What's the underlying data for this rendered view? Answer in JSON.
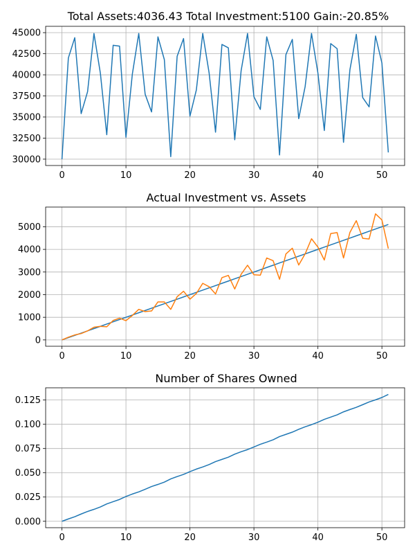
{
  "chart_data": [
    {
      "type": "line",
      "title": "Total Assets:4036.43  Total Investment:5100  Gain:-20.85%",
      "xlim": [
        -2.55,
        53.55
      ],
      "ylim": [
        29250,
        45750
      ],
      "xticks": [
        0,
        10,
        20,
        30,
        40,
        50
      ],
      "yticks": [
        30000,
        32500,
        35000,
        37500,
        40000,
        42500,
        45000
      ],
      "xtick_labels": [
        "0",
        "10",
        "20",
        "30",
        "40",
        "50"
      ],
      "ytick_labels": [
        "30000",
        "32500",
        "35000",
        "37500",
        "40000",
        "42500",
        "45000"
      ],
      "grid": true,
      "series": [
        {
          "color": "#1f77b4",
          "x": [
            0,
            1,
            2,
            3,
            4,
            5,
            6,
            7,
            8,
            9,
            10,
            11,
            12,
            13,
            14,
            15,
            16,
            17,
            18,
            19,
            20,
            21,
            22,
            23,
            24,
            25,
            26,
            27,
            28,
            29,
            30,
            31,
            32,
            33,
            34,
            35,
            36,
            37,
            38,
            39,
            40,
            41,
            42,
            43,
            44,
            45,
            46,
            47,
            48,
            49,
            50,
            51
          ],
          "values": [
            30000,
            42000,
            44400,
            35400,
            38000,
            44900,
            40200,
            32900,
            43500,
            43400,
            32600,
            40100,
            44900,
            37700,
            35600,
            44500,
            41800,
            30300,
            42200,
            44300,
            35100,
            38200,
            44900,
            40200,
            33200,
            43600,
            43200,
            32300,
            40500,
            44900,
            37400,
            35900,
            44500,
            41700,
            30500,
            42400,
            44200,
            34800,
            38600,
            44900,
            40200,
            33400,
            43700,
            43100,
            32000,
            40600,
            44800,
            37300,
            36200,
            44600,
            41400,
            30800
          ]
        }
      ]
    },
    {
      "type": "line",
      "title": "Actual Investment vs. Assets",
      "xlim": [
        -2.55,
        53.55
      ],
      "ylim": [
        -280,
        5870
      ],
      "xticks": [
        0,
        10,
        20,
        30,
        40,
        50
      ],
      "yticks": [
        0,
        1000,
        2000,
        3000,
        4000,
        5000
      ],
      "xtick_labels": [
        "0",
        "10",
        "20",
        "30",
        "40",
        "50"
      ],
      "ytick_labels": [
        "0",
        "1000",
        "2000",
        "3000",
        "4000",
        "5000"
      ],
      "grid": true,
      "series": [
        {
          "color": "#1f77b4",
          "x": [
            0,
            1,
            2,
            3,
            4,
            5,
            6,
            7,
            8,
            9,
            10,
            11,
            12,
            13,
            14,
            15,
            16,
            17,
            18,
            19,
            20,
            21,
            22,
            23,
            24,
            25,
            26,
            27,
            28,
            29,
            30,
            31,
            32,
            33,
            34,
            35,
            36,
            37,
            38,
            39,
            40,
            41,
            42,
            43,
            44,
            45,
            46,
            47,
            48,
            49,
            50,
            51
          ],
          "values": [
            0,
            100,
            200,
            300,
            400,
            500,
            600,
            700,
            800,
            900,
            1000,
            1100,
            1200,
            1300,
            1400,
            1500,
            1600,
            1700,
            1800,
            1900,
            2000,
            2100,
            2200,
            2300,
            2400,
            2500,
            2600,
            2700,
            2800,
            2900,
            3000,
            3100,
            3200,
            3300,
            3400,
            3500,
            3600,
            3700,
            3800,
            3900,
            4000,
            4100,
            4200,
            4300,
            4400,
            4500,
            4600,
            4700,
            4800,
            4900,
            5000,
            5100
          ]
        },
        {
          "color": "#ff7f0e",
          "x": [
            0,
            1,
            2,
            3,
            4,
            5,
            6,
            7,
            8,
            9,
            10,
            11,
            12,
            13,
            14,
            15,
            16,
            17,
            18,
            19,
            20,
            21,
            22,
            23,
            24,
            25,
            26,
            27,
            28,
            29,
            30,
            31,
            32,
            33,
            34,
            35,
            36,
            37,
            38,
            39,
            40,
            41,
            42,
            43,
            44,
            45,
            46,
            47,
            48,
            49,
            50,
            51
          ],
          "values": [
            0,
            120,
            220,
            280,
            400,
            560,
            600,
            580,
            860,
            960,
            850,
            1080,
            1350,
            1250,
            1280,
            1680,
            1680,
            1350,
            1910,
            2150,
            1800,
            2050,
            2500,
            2350,
            2030,
            2750,
            2850,
            2250,
            2900,
            3300,
            2880,
            2860,
            3620,
            3500,
            2680,
            3800,
            4050,
            3310,
            3800,
            4470,
            4100,
            3530,
            4700,
            4740,
            3620,
            4750,
            5270,
            4490,
            4460,
            5570,
            5300,
            4036
          ]
        }
      ]
    },
    {
      "type": "line",
      "title": "Number of Shares Owned",
      "xlim": [
        -2.55,
        53.55
      ],
      "ylim": [
        -0.0066,
        0.1376
      ],
      "xticks": [
        0,
        10,
        20,
        30,
        40,
        50
      ],
      "yticks": [
        0.0,
        0.025,
        0.05,
        0.075,
        0.1,
        0.125
      ],
      "xtick_labels": [
        "0",
        "10",
        "20",
        "30",
        "40",
        "50"
      ],
      "ytick_labels": [
        "0.000",
        "0.025",
        "0.050",
        "0.075",
        "0.100",
        "0.125"
      ],
      "grid": true,
      "series": [
        {
          "color": "#1f77b4",
          "x": [
            0,
            1,
            2,
            3,
            4,
            5,
            6,
            7,
            8,
            9,
            10,
            11,
            12,
            13,
            14,
            15,
            16,
            17,
            18,
            19,
            20,
            21,
            22,
            23,
            24,
            25,
            26,
            27,
            28,
            29,
            30,
            31,
            32,
            33,
            34,
            35,
            36,
            37,
            38,
            39,
            40,
            41,
            42,
            43,
            44,
            45,
            46,
            47,
            48,
            49,
            50,
            51
          ],
          "values": [
            0.0,
            0.0024,
            0.0047,
            0.0075,
            0.0101,
            0.0123,
            0.0148,
            0.0179,
            0.0202,
            0.0225,
            0.0256,
            0.0281,
            0.0303,
            0.033,
            0.0358,
            0.038,
            0.0404,
            0.0437,
            0.0461,
            0.0483,
            0.0512,
            0.0538,
            0.056,
            0.0585,
            0.0615,
            0.0638,
            0.0661,
            0.0692,
            0.0717,
            0.0739,
            0.0766,
            0.0794,
            0.0816,
            0.084,
            0.0873,
            0.0896,
            0.0919,
            0.0948,
            0.0974,
            0.0996,
            0.1021,
            0.1051,
            0.1074,
            0.1097,
            0.1128,
            0.1152,
            0.1175,
            0.1202,
            0.123,
            0.1252,
            0.1276,
            0.1308
          ]
        }
      ]
    }
  ]
}
